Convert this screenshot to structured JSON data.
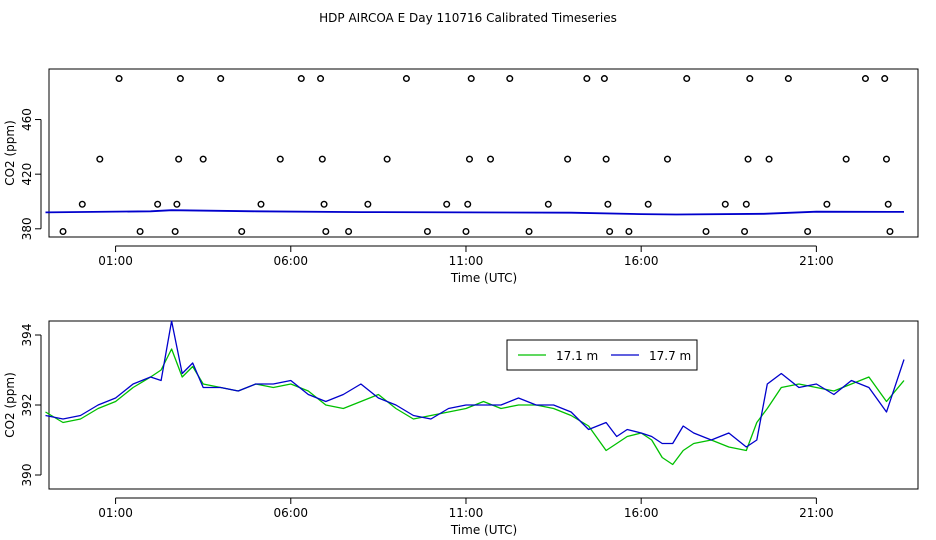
{
  "title": "HDP AIRCOA E  Day 110716  Calibrated Timeseries",
  "colors": {
    "green": "#00c000",
    "blue": "#0000cc",
    "axis": "#000000"
  },
  "chart_data": [
    {
      "type": "scatter",
      "xlabel": "Time (UTC)",
      "ylabel": "CO2 (ppm)",
      "xticks": [
        "01:00",
        "06:00",
        "11:00",
        "16:00",
        "21:00"
      ],
      "xtick_values_hours": [
        1,
        6,
        11,
        16,
        21
      ],
      "yticks": [
        380,
        420,
        460
      ],
      "xlim": [
        -0.9,
        23.9
      ],
      "ylim": [
        374,
        497
      ],
      "points_ref": [
        [
          -0.5,
          378
        ],
        [
          0.05,
          398
        ],
        [
          0.55,
          431
        ],
        [
          1.1,
          490
        ],
        [
          1.7,
          378
        ],
        [
          2.2,
          398
        ],
        [
          2.7,
          378
        ],
        [
          2.75,
          398
        ],
        [
          2.8,
          431
        ],
        [
          2.85,
          490
        ],
        [
          3.5,
          431
        ],
        [
          4.0,
          490
        ],
        [
          4.6,
          378
        ],
        [
          5.15,
          398
        ],
        [
          5.7,
          431
        ],
        [
          6.3,
          490
        ],
        [
          6.85,
          490
        ],
        [
          6.9,
          431
        ],
        [
          6.95,
          398
        ],
        [
          7.0,
          378
        ],
        [
          7.65,
          378
        ],
        [
          8.2,
          398
        ],
        [
          8.75,
          431
        ],
        [
          9.3,
          490
        ],
        [
          9.9,
          378
        ],
        [
          10.45,
          398
        ],
        [
          11.0,
          378
        ],
        [
          11.05,
          398
        ],
        [
          11.1,
          431
        ],
        [
          11.15,
          490
        ],
        [
          11.7,
          431
        ],
        [
          12.25,
          490
        ],
        [
          12.8,
          378
        ],
        [
          13.35,
          398
        ],
        [
          13.9,
          431
        ],
        [
          14.45,
          490
        ],
        [
          14.95,
          490
        ],
        [
          15.0,
          431
        ],
        [
          15.05,
          398
        ],
        [
          15.1,
          378
        ],
        [
          15.65,
          378
        ],
        [
          16.2,
          398
        ],
        [
          16.75,
          431
        ],
        [
          17.3,
          490
        ],
        [
          17.85,
          378
        ],
        [
          18.4,
          398
        ],
        [
          18.95,
          378
        ],
        [
          19.0,
          398
        ],
        [
          19.05,
          431
        ],
        [
          19.1,
          490
        ],
        [
          19.65,
          431
        ],
        [
          20.2,
          490
        ],
        [
          20.75,
          378
        ],
        [
          21.3,
          398
        ],
        [
          21.85,
          431
        ],
        [
          22.4,
          490
        ],
        [
          22.95,
          490
        ],
        [
          23.0,
          431
        ],
        [
          23.05,
          398
        ],
        [
          23.1,
          378
        ]
      ],
      "series_ref": [
        {
          "x": [
            -1.0,
            2.0,
            2.6,
            5.0,
            8.0,
            11.0,
            14.0,
            16.0,
            17.0,
            19.5,
            21.0,
            23.5
          ],
          "y": [
            392,
            392.8,
            393.6,
            392.8,
            392.2,
            392.0,
            391.8,
            390.8,
            390.5,
            391.0,
            392.5,
            392.4
          ]
        }
      ]
    },
    {
      "type": "line",
      "xlabel": "Time (UTC)",
      "ylabel": "CO2 (ppm)",
      "xticks": [
        "01:00",
        "06:00",
        "11:00",
        "16:00",
        "21:00"
      ],
      "xtick_values_hours": [
        1,
        6,
        11,
        16,
        21
      ],
      "yticks": [
        390,
        392,
        394
      ],
      "xlim": [
        -0.9,
        23.9
      ],
      "ylim": [
        389.6,
        394.4
      ],
      "legend_position": "top-right",
      "series": [
        {
          "name": "17.1 m",
          "color": "#00c000",
          "x": [
            -1.0,
            -0.5,
            0.0,
            0.5,
            1.0,
            1.5,
            2.0,
            2.3,
            2.6,
            2.9,
            3.2,
            3.5,
            4.0,
            4.5,
            5.0,
            5.5,
            6.0,
            6.5,
            7.0,
            7.5,
            8.0,
            8.5,
            9.0,
            9.5,
            10.0,
            10.5,
            11.0,
            11.5,
            12.0,
            12.5,
            13.0,
            13.5,
            14.0,
            14.5,
            15.0,
            15.3,
            15.6,
            16.0,
            16.3,
            16.6,
            16.9,
            17.2,
            17.5,
            18.0,
            18.5,
            19.0,
            19.3,
            19.6,
            20.0,
            20.5,
            21.0,
            21.5,
            22.0,
            22.5,
            23.0,
            23.5
          ],
          "y": [
            391.8,
            391.5,
            391.6,
            391.9,
            392.1,
            392.5,
            392.8,
            393.0,
            393.6,
            392.8,
            393.1,
            392.6,
            392.5,
            392.4,
            392.6,
            392.5,
            392.6,
            392.4,
            392.0,
            391.9,
            392.1,
            392.3,
            391.9,
            391.6,
            391.7,
            391.8,
            391.9,
            392.1,
            391.9,
            392.0,
            392.0,
            391.9,
            391.7,
            391.4,
            390.7,
            390.9,
            391.1,
            391.2,
            391.0,
            390.5,
            390.3,
            390.7,
            390.9,
            391.0,
            390.8,
            390.7,
            391.5,
            391.9,
            392.5,
            392.6,
            392.5,
            392.4,
            392.6,
            392.8,
            392.1,
            392.7
          ]
        },
        {
          "name": "17.7 m",
          "color": "#0000cc",
          "x": [
            -1.0,
            -0.5,
            0.0,
            0.5,
            1.0,
            1.5,
            2.0,
            2.3,
            2.6,
            2.9,
            3.2,
            3.5,
            4.0,
            4.5,
            5.0,
            5.5,
            6.0,
            6.5,
            7.0,
            7.5,
            8.0,
            8.5,
            9.0,
            9.5,
            10.0,
            10.5,
            11.0,
            11.5,
            12.0,
            12.5,
            13.0,
            13.5,
            14.0,
            14.5,
            15.0,
            15.3,
            15.6,
            16.0,
            16.3,
            16.6,
            16.9,
            17.2,
            17.5,
            18.0,
            18.5,
            19.0,
            19.3,
            19.6,
            20.0,
            20.5,
            21.0,
            21.5,
            22.0,
            22.5,
            23.0,
            23.5
          ],
          "y": [
            391.7,
            391.6,
            391.7,
            392.0,
            392.2,
            392.6,
            392.8,
            392.7,
            394.4,
            392.9,
            393.2,
            392.5,
            392.5,
            392.4,
            392.6,
            392.6,
            392.7,
            392.3,
            392.1,
            392.3,
            392.6,
            392.2,
            392.0,
            391.7,
            391.6,
            391.9,
            392.0,
            392.0,
            392.0,
            392.2,
            392.0,
            392.0,
            391.8,
            391.3,
            391.5,
            391.1,
            391.3,
            391.2,
            391.1,
            390.9,
            390.9,
            391.4,
            391.2,
            391.0,
            391.2,
            390.8,
            391.0,
            392.6,
            392.9,
            392.5,
            392.6,
            392.3,
            392.7,
            392.5,
            391.8,
            393.3
          ]
        }
      ]
    }
  ]
}
